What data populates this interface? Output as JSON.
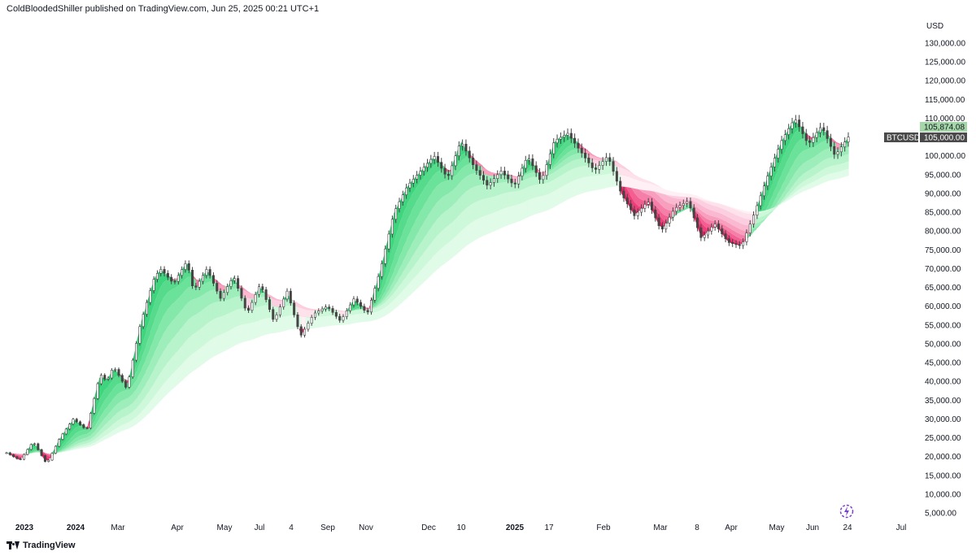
{
  "header": {
    "publisher_line": "ColdBloodedShiller published on TradingView.com, Jun 25, 2025 00:21 UTC+1"
  },
  "axis": {
    "currency": "USD"
  },
  "price_tags": {
    "upper": "105,874.08",
    "symbol": "BTCUSD",
    "last": "105,000.00"
  },
  "footer": {
    "brand": "TradingView",
    "logo_icon": "tradingview-logo-icon",
    "replay_icon": "lightning-replay-icon"
  },
  "colors": {
    "pink": "#e91e63",
    "green": "#22c55e",
    "light_green": "#c8f7c5",
    "blue": "#7fa7e0",
    "candle": "#444444",
    "tag_green": "#a5d6a7",
    "tag_dark": "#4a4a4a",
    "replay": "#7b3fd0"
  },
  "chart_data": {
    "type": "line",
    "title": "",
    "ylim": [
      0,
      135000
    ],
    "yticks": [
      "130,000.00",
      "125,000.00",
      "120,000.00",
      "115,000.00",
      "110,000.00",
      "105,000.00",
      "100,000.00",
      "95,000.00",
      "90,000.00",
      "85,000.00",
      "80,000.00",
      "75,000.00",
      "70,000.00",
      "65,000.00",
      "60,000.00",
      "55,000.00",
      "50,000.00",
      "45,000.00",
      "40,000.00",
      "35,000.00",
      "30,000.00",
      "25,000.00",
      "20,000.00",
      "15,000.00",
      "10,000.00",
      "5,000.00"
    ],
    "xticks": [
      {
        "label": "2023",
        "bold": true
      },
      {
        "label": "2024",
        "bold": true
      },
      {
        "label": "Mar",
        "bold": false
      },
      {
        "label": "Apr",
        "bold": false
      },
      {
        "label": "May",
        "bold": false
      },
      {
        "label": "Jul",
        "bold": false
      },
      {
        "label": "4",
        "bold": false
      },
      {
        "label": "Sep",
        "bold": false
      },
      {
        "label": "Nov",
        "bold": false
      },
      {
        "label": "Dec",
        "bold": false
      },
      {
        "label": "10",
        "bold": false
      },
      {
        "label": "2025",
        "bold": true
      },
      {
        "label": "17",
        "bold": false
      },
      {
        "label": "Feb",
        "bold": false
      },
      {
        "label": "Mar",
        "bold": false
      },
      {
        "label": "8",
        "bold": false
      },
      {
        "label": "Apr",
        "bold": false
      },
      {
        "label": "May",
        "bold": false
      },
      {
        "label": "Jun",
        "bold": false
      },
      {
        "label": "24",
        "bold": false
      },
      {
        "label": "Jul",
        "bold": false
      }
    ],
    "series": [
      {
        "name": "BTCUSD",
        "points": [
          [
            0,
            21000
          ],
          [
            2,
            19000
          ],
          [
            4,
            24000
          ],
          [
            6,
            18000
          ],
          [
            8,
            25000
          ],
          [
            10,
            30000
          ],
          [
            12,
            27000
          ],
          [
            14,
            42000
          ],
          [
            15,
            40000
          ],
          [
            16,
            44000
          ],
          [
            18,
            38000
          ],
          [
            20,
            55000
          ],
          [
            22,
            67000
          ],
          [
            23,
            70000
          ],
          [
            25,
            66000
          ],
          [
            27,
            72000
          ],
          [
            28,
            64000
          ],
          [
            30,
            70000
          ],
          [
            32,
            62000
          ],
          [
            34,
            68000
          ],
          [
            36,
            58000
          ],
          [
            38,
            66000
          ],
          [
            40,
            56000
          ],
          [
            42,
            64000
          ],
          [
            44,
            52000
          ],
          [
            46,
            58000
          ],
          [
            48,
            60000
          ],
          [
            50,
            56000
          ],
          [
            52,
            62000
          ],
          [
            54,
            58000
          ],
          [
            56,
            70000
          ],
          [
            58,
            85000
          ],
          [
            60,
            92000
          ],
          [
            62,
            96000
          ],
          [
            64,
            100000
          ],
          [
            66,
            94000
          ],
          [
            68,
            104000
          ],
          [
            70,
            97000
          ],
          [
            72,
            92000
          ],
          [
            74,
            96000
          ],
          [
            76,
            92000
          ],
          [
            78,
            100000
          ],
          [
            80,
            93000
          ],
          [
            82,
            104000
          ],
          [
            84,
            106000
          ],
          [
            86,
            101000
          ],
          [
            88,
            96000
          ],
          [
            90,
            100000
          ],
          [
            92,
            90000
          ],
          [
            94,
            84000
          ],
          [
            96,
            88000
          ],
          [
            98,
            80000
          ],
          [
            100,
            86000
          ],
          [
            102,
            88000
          ],
          [
            104,
            78000
          ],
          [
            106,
            82000
          ],
          [
            108,
            77000
          ],
          [
            110,
            76000
          ],
          [
            112,
            85000
          ],
          [
            114,
            95000
          ],
          [
            116,
            104000
          ],
          [
            118,
            110000
          ],
          [
            120,
            103000
          ],
          [
            122,
            108000
          ],
          [
            124,
            100000
          ],
          [
            126,
            105000
          ]
        ]
      }
    ],
    "last_price": 105000,
    "upper_price": 105874.08
  }
}
